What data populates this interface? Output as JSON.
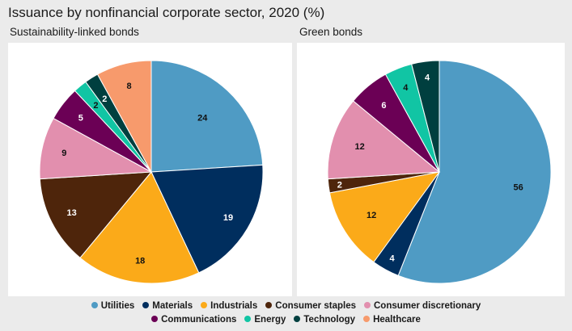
{
  "header": {
    "title": "Issuance by nonfinancial corporate sector, 2020 (%)"
  },
  "chart_data": [
    {
      "type": "pie",
      "title": "Sustainability-linked bonds",
      "categories": [
        "Utilities",
        "Materials",
        "Industrials",
        "Consumer staples",
        "Consumer discretionary",
        "Communications",
        "Energy",
        "Technology",
        "Healthcare"
      ],
      "values": [
        24,
        19,
        18,
        13,
        9,
        5,
        2,
        2,
        8
      ],
      "label_colors": [
        "#111111",
        "#ffffff",
        "#111111",
        "#ffffff",
        "#111111",
        "#ffffff",
        "#111111",
        "#ffffff",
        "#111111"
      ]
    },
    {
      "type": "pie",
      "title": "Green bonds",
      "categories": [
        "Utilities",
        "Materials",
        "Industrials",
        "Consumer staples",
        "Consumer discretionary",
        "Communications",
        "Energy",
        "Technology",
        "Healthcare"
      ],
      "values": [
        56,
        4,
        12,
        2,
        12,
        6,
        4,
        4,
        0
      ],
      "label_colors": [
        "#111111",
        "#ffffff",
        "#111111",
        "#ffffff",
        "#111111",
        "#ffffff",
        "#111111",
        "#ffffff",
        "#111111"
      ]
    }
  ],
  "legend": {
    "rows": [
      [
        {
          "label": "Utilities",
          "color": "#4f9bc4"
        },
        {
          "label": "Materials",
          "color": "#002e5e"
        },
        {
          "label": "Industrials",
          "color": "#fbaa19"
        },
        {
          "label": "Consumer staples",
          "color": "#4e250b"
        },
        {
          "label": "Consumer discretionary",
          "color": "#e28fae"
        }
      ],
      [
        {
          "label": "Communications",
          "color": "#6b0055"
        },
        {
          "label": "Energy",
          "color": "#11c5a4"
        },
        {
          "label": "Technology",
          "color": "#003f3f"
        },
        {
          "label": "Healthcare",
          "color": "#f79a6c"
        }
      ]
    ]
  }
}
